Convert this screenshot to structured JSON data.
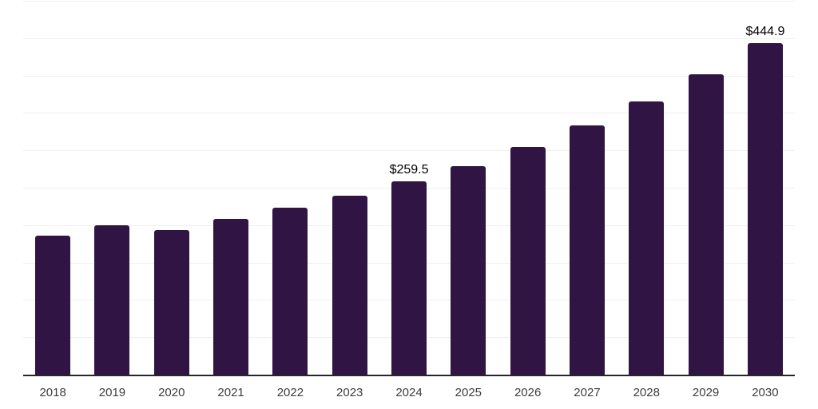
{
  "chart_data": {
    "type": "bar",
    "title": "",
    "xlabel": "",
    "ylabel": "",
    "categories": [
      "2018",
      "2019",
      "2020",
      "2021",
      "2022",
      "2023",
      "2024",
      "2025",
      "2026",
      "2027",
      "2028",
      "2029",
      "2030"
    ],
    "values": [
      187.3,
      201.1,
      194.8,
      209.7,
      224.5,
      240.6,
      259.5,
      279.9,
      305.4,
      334.2,
      366.1,
      403.3,
      444.9
    ],
    "labeled_points": [
      {
        "category": "2024",
        "label": "$259.5"
      },
      {
        "category": "2030",
        "label": "$444.9"
      }
    ],
    "ylim": [
      0,
      500
    ],
    "gridline_step": 50,
    "grid": "horizontal",
    "legend": "none",
    "colors": {
      "bar": "#2f1444",
      "gridline": "#f0f0f0",
      "axis_line": "#262626",
      "data_label": "#000000",
      "tick_label": "#3d3d3d",
      "background": "#ffffff"
    }
  }
}
